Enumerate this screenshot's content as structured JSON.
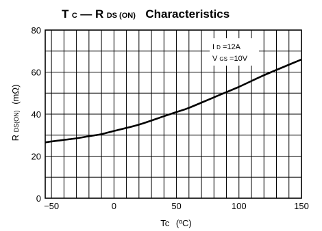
{
  "chart_data": {
    "type": "line",
    "title": {
      "t_main": "T",
      "t_sub": "C",
      "dash": " — R",
      "r_sub": "DS (ON)",
      "rest": "Characteristics"
    },
    "xlabel": {
      "main": "Tc",
      "unit": "(ºC)"
    },
    "ylabel": {
      "main": "R",
      "sub": "DS(ON)",
      "unit": "(mΩ)"
    },
    "xlim": [
      -55,
      150
    ],
    "ylim": [
      0,
      80
    ],
    "x_ticks": [
      -50,
      0,
      50,
      100,
      150
    ],
    "x_tick_labels": [
      "−50",
      "0",
      "50",
      "100",
      "150"
    ],
    "y_ticks": [
      0,
      20,
      40,
      60,
      80
    ],
    "y_tick_labels": [
      "0",
      "20",
      "40",
      "60",
      "80"
    ],
    "grid": true,
    "annotations": [
      {
        "main": "I",
        "sub": "D",
        "rest": "=12A"
      },
      {
        "main": "V",
        "sub": "GS",
        "rest": "=10V"
      }
    ],
    "series": [
      {
        "x": [
          -55,
          -50,
          -30,
          -20,
          -10,
          0,
          20,
          40,
          50,
          60,
          80,
          100,
          120,
          150
        ],
        "y": [
          26.5,
          27,
          28.5,
          29.5,
          30.5,
          32,
          35,
          39,
          41,
          43,
          48,
          53,
          58.5,
          66
        ]
      }
    ]
  }
}
